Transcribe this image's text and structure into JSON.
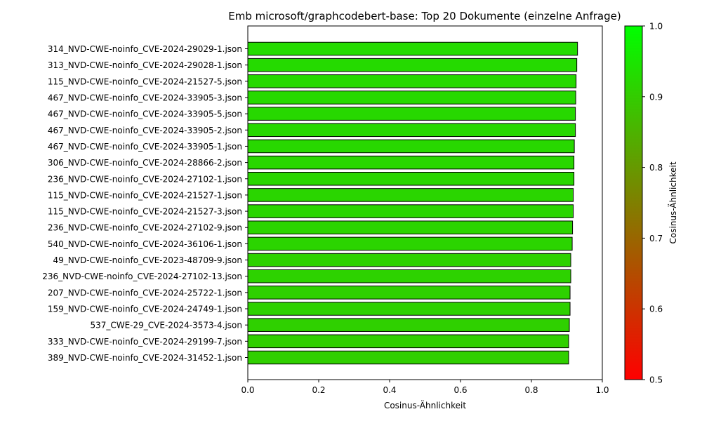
{
  "chart_data": {
    "type": "bar",
    "orientation": "horizontal",
    "title": "Emb microsoft/graphcodebert-base: Top 20 Dokumente (einzelne Anfrage)",
    "xlabel": "Cosinus-Ähnlichkeit",
    "ylabel": "",
    "xlim": [
      0.0,
      1.0
    ],
    "xticks": [
      "0.0",
      "0.2",
      "0.4",
      "0.6",
      "0.8",
      "1.0"
    ],
    "grid": false,
    "categories": [
      "314_NVD-CWE-noinfo_CVE-2024-29029-1.json",
      "313_NVD-CWE-noinfo_CVE-2024-29028-1.json",
      "115_NVD-CWE-noinfo_CVE-2024-21527-5.json",
      "467_NVD-CWE-noinfo_CVE-2024-33905-3.json",
      "467_NVD-CWE-noinfo_CVE-2024-33905-5.json",
      "467_NVD-CWE-noinfo_CVE-2024-33905-2.json",
      "467_NVD-CWE-noinfo_CVE-2024-33905-1.json",
      "306_NVD-CWE-noinfo_CVE-2024-28866-2.json",
      "236_NVD-CWE-noinfo_CVE-2024-27102-1.json",
      "115_NVD-CWE-noinfo_CVE-2024-21527-1.json",
      "115_NVD-CWE-noinfo_CVE-2024-21527-3.json",
      "236_NVD-CWE-noinfo_CVE-2024-27102-9.json",
      "540_NVD-CWE-noinfo_CVE-2024-36106-1.json",
      "49_NVD-CWE-noinfo_CVE-2023-48709-9.json",
      "236_NVD-CWE-noinfo_CVE-2024-27102-13.json",
      "207_NVD-CWE-noinfo_CVE-2024-25722-1.json",
      "159_NVD-CWE-noinfo_CVE-2024-24749-1.json",
      "537_CWE-29_CVE-2024-3573-4.json",
      "333_NVD-CWE-noinfo_CVE-2024-29199-7.json",
      "389_NVD-CWE-noinfo_CVE-2024-31452-1.json"
    ],
    "values": [
      0.93,
      0.928,
      0.926,
      0.925,
      0.924,
      0.924,
      0.921,
      0.92,
      0.92,
      0.918,
      0.918,
      0.916,
      0.915,
      0.911,
      0.911,
      0.909,
      0.909,
      0.907,
      0.905,
      0.905
    ],
    "bar_edge_color": "#000000",
    "colorbar": {
      "label": "Cosinus-Ähnlichkeit",
      "range": [
        0.5,
        1.0
      ],
      "ticks": [
        "0.5",
        "0.6",
        "0.7",
        "0.8",
        "0.9",
        "1.0"
      ],
      "color_low": "#ff0000",
      "color_high": "#00ff00"
    }
  }
}
